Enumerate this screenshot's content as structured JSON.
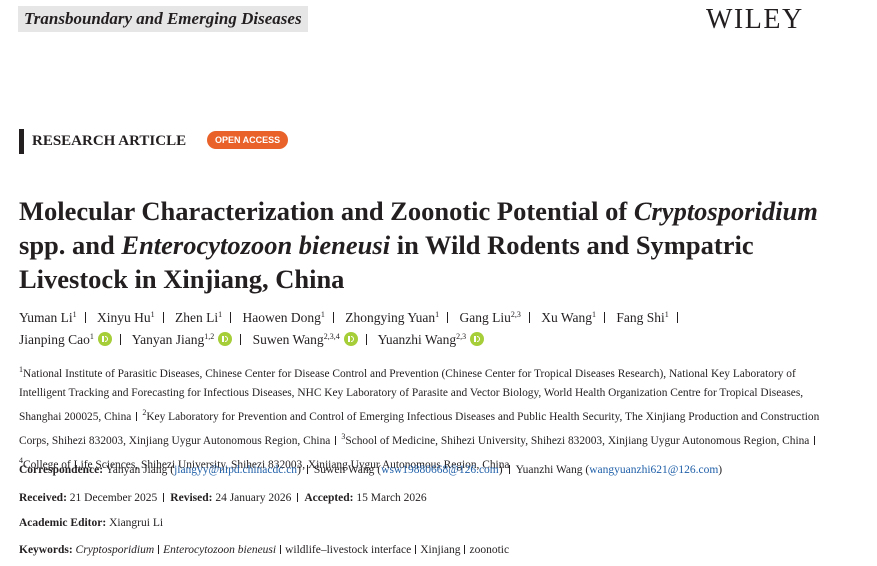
{
  "header": {
    "journal": "Transboundary and Emerging Diseases",
    "publisher": "WILEY"
  },
  "article_type": "RESEARCH ARTICLE",
  "access": "OPEN ACCESS",
  "title": [
    {
      "text": "Molecular Characterization and Zoonotic Potential of ",
      "italic": false
    },
    {
      "text": "Cryptosporidium",
      "italic": true
    },
    {
      "text": " spp. and ",
      "italic": false
    },
    {
      "text": "Enterocytozoon bieneusi",
      "italic": true
    },
    {
      "text": " in Wild Rodents and Sympatric Livestock in Xinjiang, China",
      "italic": false
    }
  ],
  "authors": [
    {
      "name": "Yuman Li",
      "affiliations": "1",
      "orcid": false
    },
    {
      "name": "Xinyu Hu",
      "affiliations": "1",
      "orcid": false
    },
    {
      "name": "Zhen Li",
      "affiliations": "1",
      "orcid": false
    },
    {
      "name": "Haowen Dong",
      "affiliations": "1",
      "orcid": false
    },
    {
      "name": "Zhongying Yuan",
      "affiliations": "1",
      "orcid": false
    },
    {
      "name": "Gang Liu",
      "affiliations": "2,3",
      "orcid": false
    },
    {
      "name": "Xu Wang",
      "affiliations": "1",
      "orcid": false
    },
    {
      "name": "Fang Shi",
      "affiliations": "1",
      "orcid": false
    },
    {
      "name": "Jianping Cao",
      "affiliations": "1",
      "orcid": true
    },
    {
      "name": "Yanyan Jiang",
      "affiliations": "1,2",
      "orcid": true
    },
    {
      "name": "Suwen Wang",
      "affiliations": "2,3,4",
      "orcid": true
    },
    {
      "name": "Yuanzhi Wang",
      "affiliations": "2,3",
      "orcid": true
    }
  ],
  "affiliations": [
    {
      "number": "1",
      "text": "National Institute of Parasitic Diseases, Chinese Center for Disease Control and Prevention (Chinese Center for Tropical Diseases Research), National Key Laboratory of Intelligent Tracking and Forecasting for Infectious Diseases, NHC Key Laboratory of Parasite and Vector Biology, World Health Organization Centre for Tropical Diseases, Shanghai 200025, China"
    },
    {
      "number": "2",
      "text": "Key Laboratory for Prevention and Control of Emerging Infectious Diseases and Public Health Security, The Xinjiang Production and Construction Corps, Shihezi 832003, Xinjiang Uygur Autonomous Region, China"
    },
    {
      "number": "3",
      "text": "School of Medicine, Shihezi University, Shihezi 832003, Xinjiang Uygur Autonomous Region, China"
    },
    {
      "number": "4",
      "text": "College of Life Sciences, Shihezi University, Shihezi 832003, Xinjiang Uygur Autonomous Region, China"
    }
  ],
  "correspondence": {
    "label": "Correspondence:",
    "entries": [
      {
        "name": "Yanyan Jiang",
        "email": "jiangyy@nipd.chinacdc.cn"
      },
      {
        "name": "Suwen Wang",
        "email": "wsw19880668@126.com"
      },
      {
        "name": "Yuanzhi Wang",
        "email": "wangyuanzhi621@126.com"
      }
    ]
  },
  "dates": [
    {
      "label": "Received:",
      "value": "21 December 2025"
    },
    {
      "label": "Revised:",
      "value": "24 January 2026"
    },
    {
      "label": "Accepted:",
      "value": "15 March 2026"
    }
  ],
  "editor": {
    "label": "Academic Editor:",
    "value": "Xiangrui Li"
  },
  "keywords": {
    "label": "Keywords:",
    "items": [
      {
        "text": "Cryptosporidium",
        "italic": true
      },
      {
        "text": "Enterocytozoon bieneusi",
        "italic": true
      },
      {
        "text": "wildlife–livestock interface",
        "italic": false
      },
      {
        "text": "Xinjiang",
        "italic": false
      },
      {
        "text": "zoonotic",
        "italic": false
      }
    ]
  }
}
